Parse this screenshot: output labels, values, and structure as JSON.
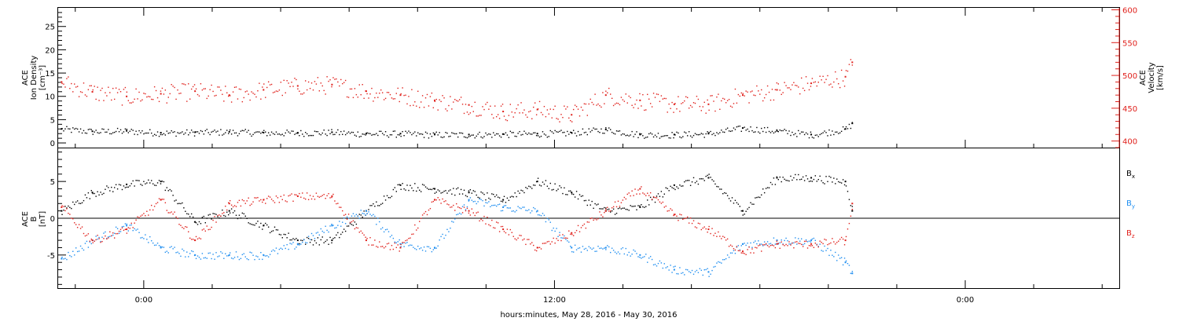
{
  "colors": {
    "density": "#000000",
    "velocity": "#e0201b",
    "bx": "#000000",
    "by": "#1f8ef0",
    "bz": "#e0201b",
    "axis": "#000000",
    "right_axis": "#e0201b"
  },
  "chart_data": [
    {
      "type": "scatter",
      "panel": "top",
      "left_axis_label_lines": [
        "ACE",
        "Ion Density",
        "[cm⁻³]"
      ],
      "right_axis_label_lines": [
        "ACE",
        "Velocity",
        "[km/s]"
      ],
      "left_ylim": [
        -1,
        29
      ],
      "left_ticks": [
        0,
        5,
        10,
        15,
        20,
        25
      ],
      "left_tick_labels": [
        "0",
        "5",
        "10",
        "15",
        "20",
        "25"
      ],
      "right_ylim": [
        390,
        603
      ],
      "right_ticks": [
        400,
        450,
        500,
        550,
        600
      ],
      "right_tick_labels": [
        "400",
        "450",
        "500",
        "550",
        "600"
      ],
      "series": [
        {
          "axis": "left",
          "color_key": "density",
          "x": [
            -2.4,
            -1.5,
            -0.5,
            0.5,
            1.5,
            2.5,
            3.5,
            4.5,
            5.5,
            6.5,
            7.5,
            8.5,
            9.5,
            10.5,
            11.5,
            12.5,
            13.5,
            14.5,
            15.5,
            16.5,
            17.5,
            18.5,
            19.5,
            20.5,
            20.7
          ],
          "y": [
            3.0,
            2.5,
            2.6,
            2.2,
            2.3,
            2.4,
            2.2,
            2.2,
            2.3,
            2.0,
            2.0,
            1.8,
            1.8,
            1.9,
            2.0,
            2.2,
            2.9,
            1.8,
            1.8,
            2.0,
            3.2,
            2.6,
            1.8,
            3.0,
            4.2
          ]
        },
        {
          "axis": "right",
          "color_key": "velocity",
          "x": [
            -2.4,
            -1.5,
            -0.5,
            0.5,
            1.5,
            2.5,
            3.5,
            4.5,
            5.5,
            6.5,
            7.5,
            8.5,
            9.5,
            10.5,
            11.5,
            12.5,
            13.5,
            14.5,
            15.5,
            16.5,
            17.5,
            18.5,
            19.5,
            20.5,
            20.7
          ],
          "y": [
            490,
            475,
            468,
            472,
            476,
            470,
            478,
            484,
            486,
            476,
            470,
            462,
            455,
            445,
            448,
            440,
            470,
            462,
            456,
            456,
            470,
            478,
            488,
            498,
            520
          ]
        }
      ]
    },
    {
      "type": "scatter",
      "panel": "bottom",
      "axis_label_lines": [
        "ACE",
        "B",
        "[nT]"
      ],
      "ylim": [
        -9.5,
        9.5
      ],
      "yticks": [
        -5,
        0,
        5
      ],
      "ytick_labels": [
        "-5",
        "0",
        "5"
      ],
      "zero_line": true,
      "legend_placement": "right",
      "series": [
        {
          "name": "B",
          "subscript": "x",
          "color_key": "bx",
          "x": [
            -2.4,
            -1.5,
            -0.5,
            0.5,
            1.5,
            2.5,
            3.5,
            4.5,
            5.5,
            6.5,
            7.5,
            8.5,
            9.5,
            10.5,
            11.5,
            12.5,
            13.5,
            14.5,
            15.5,
            16.5,
            17.5,
            18.5,
            19.5,
            20.5,
            20.7
          ],
          "y": [
            1.0,
            3.5,
            4.6,
            5.0,
            -0.5,
            1.0,
            -1.0,
            -3.0,
            -3.0,
            1.0,
            4.5,
            4.0,
            3.5,
            2.5,
            5.0,
            3.5,
            1.0,
            1.5,
            4.5,
            5.5,
            1.0,
            5.5,
            5.5,
            5.0,
            1.0
          ]
        },
        {
          "name": "B",
          "subscript": "y",
          "color_key": "by",
          "x": [
            -2.4,
            -1.5,
            -0.5,
            0.5,
            1.5,
            2.5,
            3.5,
            4.5,
            5.5,
            6.5,
            7.5,
            8.5,
            9.5,
            10.5,
            11.5,
            12.5,
            13.5,
            14.5,
            15.5,
            16.5,
            17.5,
            18.5,
            19.5,
            20.5,
            20.7
          ],
          "y": [
            -5.5,
            -3.0,
            -1.0,
            -4.0,
            -5.0,
            -5.0,
            -5.0,
            -3.5,
            -1.0,
            1.0,
            -3.5,
            -4.0,
            2.5,
            1.5,
            1.0,
            -4.0,
            -4.0,
            -5.0,
            -7.0,
            -7.3,
            -3.5,
            -3.0,
            -3.0,
            -6.0,
            -7.5
          ]
        },
        {
          "name": "B",
          "subscript": "z",
          "color_key": "bz",
          "x": [
            -2.4,
            -1.5,
            -0.5,
            0.5,
            1.5,
            2.5,
            3.5,
            4.5,
            5.5,
            6.5,
            7.5,
            8.5,
            9.5,
            10.5,
            11.5,
            12.5,
            13.5,
            14.5,
            15.5,
            16.5,
            17.5,
            18.5,
            19.5,
            20.5,
            20.7
          ],
          "y": [
            1.5,
            -3.0,
            -1.5,
            2.5,
            -3.0,
            2.0,
            2.5,
            3.0,
            3.0,
            -3.0,
            -4.0,
            2.5,
            1.0,
            -1.5,
            -4.0,
            -2.0,
            1.0,
            4.0,
            0.5,
            -1.5,
            -4.5,
            -3.5,
            -3.5,
            -3.0,
            2.0
          ]
        }
      ]
    }
  ],
  "x_axis": {
    "xlim": [
      -2.5,
      28.5
    ],
    "major_ticks": [
      0,
      12,
      24
    ],
    "tick_labels": [
      "0:00",
      "12:00",
      "0:00"
    ],
    "minor_step": 2,
    "label": "hours:minutes, May 28, 2016 - May 30, 2016"
  }
}
